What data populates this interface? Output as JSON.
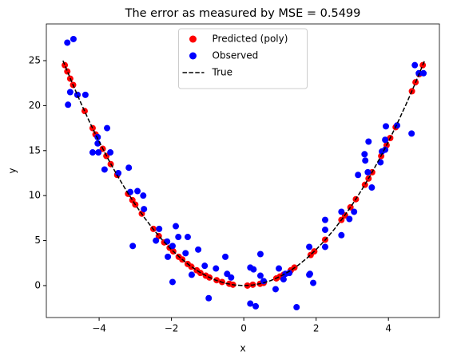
{
  "chart_data": {
    "type": "scatter",
    "title": "The error as measured by MSE = 0.5499",
    "x_label": "x",
    "y_label": "y",
    "xlim": [
      -5.46,
      5.41
    ],
    "ylim": [
      -3.55,
      29.08
    ],
    "xticks": [
      {
        "value": -4,
        "label": "−4"
      },
      {
        "value": -2,
        "label": "−2"
      },
      0,
      2,
      4
    ],
    "yticks": [
      0,
      5,
      10,
      15,
      20,
      25
    ],
    "legend": "upper center",
    "series": [
      {
        "name": "Predicted (poly)",
        "color": "#ff0000",
        "marker": "o",
        "x": [
          -4.95,
          -4.88,
          -4.8,
          -4.72,
          -4.6,
          -4.4,
          -4.18,
          -4.1,
          -3.9,
          -3.8,
          -3.68,
          -3.5,
          -3.2,
          -3.08,
          -3.0,
          -2.82,
          -2.5,
          -2.35,
          -2.2,
          -2.05,
          -1.95,
          -1.8,
          -1.7,
          -1.55,
          -1.45,
          -1.3,
          -1.2,
          -1.05,
          -0.95,
          -0.75,
          -0.6,
          -0.4,
          -0.3,
          0.1,
          0.25,
          0.45,
          0.55,
          0.9,
          1.0,
          1.1,
          1.3,
          1.4,
          1.85,
          1.95,
          2.25,
          2.7,
          2.8,
          2.95,
          3.1,
          3.35,
          3.45,
          3.55,
          3.8,
          3.95,
          4.05,
          4.2,
          4.65,
          4.75,
          4.85,
          4.95
        ],
        "values": [
          24.5,
          23.8,
          23.0,
          22.3,
          21.2,
          19.4,
          17.5,
          16.8,
          15.2,
          14.4,
          13.5,
          12.3,
          10.2,
          9.5,
          9.0,
          8.0,
          6.3,
          5.5,
          4.8,
          4.2,
          3.8,
          3.2,
          2.9,
          2.4,
          2.1,
          1.7,
          1.4,
          1.1,
          0.9,
          0.6,
          0.4,
          0.2,
          0.1,
          0.0,
          0.1,
          0.2,
          0.3,
          0.8,
          1.0,
          1.2,
          1.7,
          2.0,
          3.4,
          3.8,
          5.1,
          7.3,
          7.8,
          8.7,
          9.6,
          11.2,
          11.9,
          12.6,
          14.4,
          15.6,
          16.4,
          17.6,
          21.6,
          22.6,
          23.5,
          24.5
        ]
      },
      {
        "name": "Observed",
        "color": "#0000ff",
        "marker": "o",
        "x": [
          -4.88,
          -4.71,
          -4.86,
          -4.8,
          -4.6,
          -4.38,
          -4.04,
          -4.18,
          -4.02,
          -4.04,
          -3.78,
          -3.69,
          -3.85,
          -3.47,
          -3.18,
          -3.14,
          -2.94,
          -2.78,
          -3.07,
          -2.76,
          -2.43,
          -2.34,
          -2.12,
          -2.1,
          -1.97,
          -1.88,
          -1.81,
          -1.55,
          -1.97,
          -1.61,
          -1.44,
          -1.26,
          -1.08,
          -0.97,
          -0.77,
          -0.51,
          -0.46,
          -0.35,
          0.18,
          0.33,
          0.18,
          0.27,
          0.46,
          0.46,
          0.55,
          0.88,
          0.97,
          1.1,
          1.15,
          1.26,
          1.46,
          1.81,
          1.81,
          1.92,
          1.83,
          2.25,
          2.25,
          2.25,
          2.7,
          2.7,
          2.92,
          3.05,
          3.16,
          3.34,
          3.36,
          3.43,
          3.45,
          3.54,
          3.78,
          3.82,
          3.91,
          3.93,
          3.91,
          4.24,
          4.64,
          4.73,
          4.84,
          4.97
        ],
        "values": [
          27.0,
          27.4,
          20.1,
          21.5,
          21.2,
          21.2,
          16.5,
          14.8,
          14.8,
          15.8,
          17.5,
          14.8,
          12.9,
          12.5,
          13.1,
          10.4,
          10.5,
          10.0,
          4.4,
          8.5,
          5.0,
          6.3,
          4.9,
          3.2,
          4.4,
          6.6,
          5.4,
          5.4,
          0.4,
          3.6,
          1.2,
          4.0,
          2.2,
          -1.4,
          1.9,
          3.2,
          1.3,
          0.9,
          -2.0,
          -2.3,
          2.0,
          1.8,
          1.1,
          3.5,
          0.5,
          -0.4,
          1.9,
          0.7,
          1.3,
          1.4,
          -2.4,
          1.2,
          4.3,
          0.3,
          1.3,
          4.3,
          7.3,
          6.2,
          5.6,
          8.2,
          7.4,
          8.2,
          12.3,
          14.6,
          13.9,
          12.6,
          16.0,
          10.9,
          13.7,
          14.9,
          15.1,
          17.7,
          16.2,
          17.8,
          16.9,
          24.5,
          23.6,
          23.6
        ]
      },
      {
        "name": "True",
        "color": "#000000",
        "linestyle": "--",
        "x": [
          -5,
          -4.75,
          -4.5,
          -4.25,
          -4,
          -3.75,
          -3.5,
          -3.25,
          -3,
          -2.75,
          -2.5,
          -2.25,
          -2,
          -1.75,
          -1.5,
          -1.25,
          -1,
          -0.75,
          -0.5,
          -0.25,
          0,
          0.25,
          0.5,
          0.75,
          1,
          1.25,
          1.5,
          1.75,
          2,
          2.25,
          2.5,
          2.75,
          3,
          3.25,
          3.5,
          3.75,
          4,
          4.25,
          4.5,
          4.75,
          5
        ],
        "values": [
          25,
          22.5625,
          20.25,
          18.0625,
          16,
          14.0625,
          12.25,
          10.5625,
          9,
          7.5625,
          6.25,
          5.0625,
          4,
          3.0625,
          2.25,
          1.5625,
          1,
          0.5625,
          0.25,
          0.0625,
          0,
          0.0625,
          0.25,
          0.5625,
          1,
          1.5625,
          2.25,
          3.0625,
          4,
          5.0625,
          6.25,
          7.5625,
          9,
          10.5625,
          12.25,
          14.0625,
          16,
          18.0625,
          20.25,
          22.5625,
          25
        ]
      }
    ]
  }
}
